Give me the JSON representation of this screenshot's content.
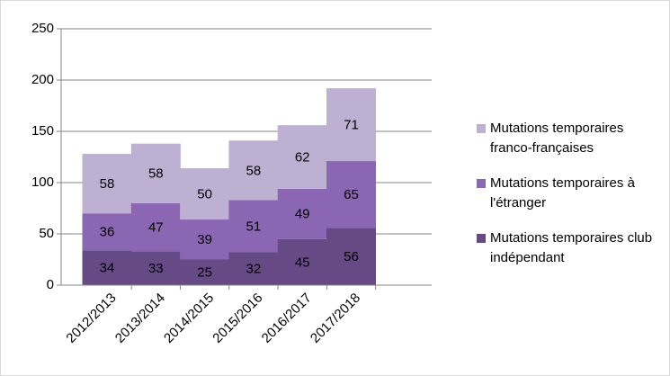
{
  "chart_data": {
    "type": "stacked_bar",
    "categories": [
      "2012/2013",
      "2013/2014",
      "2014/2015",
      "2015/2016",
      "2016/2017",
      "2017/2018"
    ],
    "series": [
      {
        "name": "Mutations temporaires club indépendant",
        "color": "#654a85",
        "values": [
          34,
          33,
          25,
          32,
          45,
          56
        ]
      },
      {
        "name": "Mutations temporaires à l'étranger",
        "color": "#8b66b2",
        "values": [
          36,
          47,
          39,
          51,
          49,
          65
        ]
      },
      {
        "name": "Mutations temporaires franco-françaises",
        "color": "#bdb0d3",
        "values": [
          58,
          58,
          50,
          58,
          62,
          71
        ]
      }
    ],
    "ylim": [
      0,
      250
    ],
    "yticks": [
      0,
      50,
      100,
      150,
      200,
      250
    ],
    "grid": true,
    "legend": "right"
  }
}
